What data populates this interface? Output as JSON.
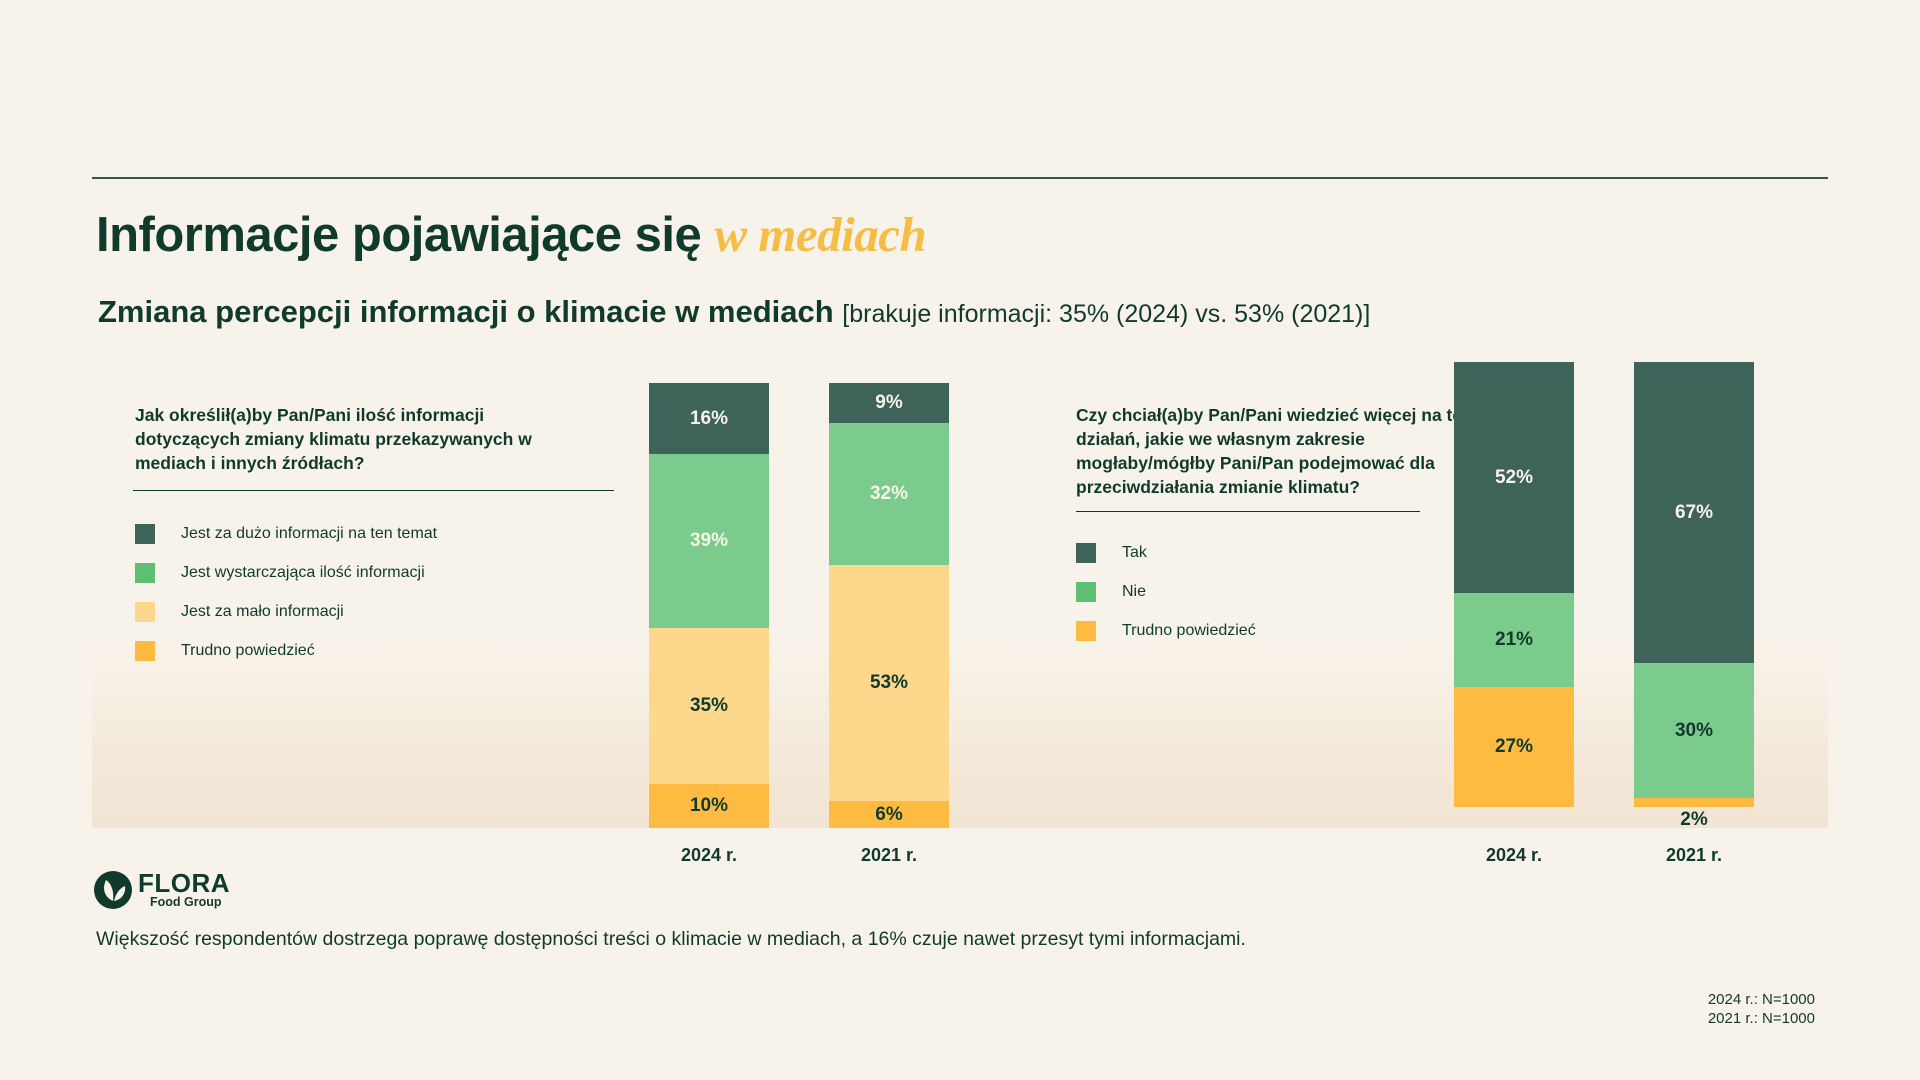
{
  "header": {
    "title_main": "Informacje pojawiające się",
    "title_accent": "w mediach",
    "subtitle_main": "Zmiana percepcji informacji o klimacie w mediach",
    "subtitle_note": "[brakuje informacji: 35% (2024) vs. 53% (2021)]"
  },
  "colors": {
    "dark_green": "#3e6358",
    "mid_green": "#7acb8c",
    "swatch_green": "#5dbf72",
    "light_yellow": "#fdd78b",
    "yellow": "#fdbc41",
    "text": "#103a2c",
    "accent": "#f6bd45",
    "background": "#f8f3ea"
  },
  "left_panel": {
    "question": "Jak określił(a)by Pan/Pani ilość informacji dotyczących zmiany klimatu przekazywanych w mediach i innych źródłach?",
    "legend": [
      {
        "label": "Jest za dużo informacji na ten temat",
        "color": "#3e6358"
      },
      {
        "label": "Jest wystarczająca ilość informacji",
        "color": "#5dbf72"
      },
      {
        "label": "Jest za mało informacji",
        "color": "#fdd78b"
      },
      {
        "label": "Trudno powiedzieć",
        "color": "#fdbc41"
      }
    ]
  },
  "right_panel": {
    "question": "Czy chciał(a)by Pan/Pani wiedzieć więcej na temat działań, jakie we własnym zakresie mogłaby/mógłby Pani/Pan podejmować dla przeciwdziałania zmianie klimatu?",
    "legend": [
      {
        "label": "Tak",
        "color": "#3e6358"
      },
      {
        "label": "Nie",
        "color": "#5dbf72"
      },
      {
        "label": "Trudno powiedzieć",
        "color": "#fdbc41"
      }
    ]
  },
  "chart_data": [
    {
      "type": "bar",
      "stacked": true,
      "categories": [
        "2024 r.",
        "2021 r."
      ],
      "series": [
        {
          "name": "Trudno powiedzieć",
          "values": [
            10,
            6
          ],
          "color": "#fdbc41",
          "label_color": "#103a2c"
        },
        {
          "name": "Jest za mało informacji",
          "values": [
            35,
            53
          ],
          "color": "#fdd78b",
          "label_color": "#103a2c"
        },
        {
          "name": "Jest wystarczająca ilość informacji",
          "values": [
            39,
            32
          ],
          "color": "#7acb8c",
          "label_color": "#f8f3ea"
        },
        {
          "name": "Jest za dużo informacji na ten temat",
          "values": [
            16,
            9
          ],
          "color": "#3e6358",
          "label_color": "#f8f3ea"
        }
      ],
      "value_suffix": "%"
    },
    {
      "type": "bar",
      "stacked": true,
      "categories": [
        "2024 r.",
        "2021 r."
      ],
      "series": [
        {
          "name": "Trudno powiedzieć",
          "values": [
            27,
            2
          ],
          "color": "#fdbc41",
          "label_color": "#103a2c"
        },
        {
          "name": "Nie",
          "values": [
            21,
            30
          ],
          "color": "#7acb8c",
          "label_color": "#103a2c"
        },
        {
          "name": "Tak",
          "values": [
            52,
            67
          ],
          "color": "#3e6358",
          "label_color": "#f8f3ea"
        }
      ],
      "value_suffix": "%"
    }
  ],
  "brand": {
    "name": "FLORA",
    "sub": "Food Group"
  },
  "footnote": "Większość respondentów dostrzega poprawę dostępności treści o klimacie w mediach, a 16% czuje nawet przesyt tymi informacjami.",
  "sample": [
    "2024 r.: N=1000",
    "2021 r.: N=1000"
  ]
}
